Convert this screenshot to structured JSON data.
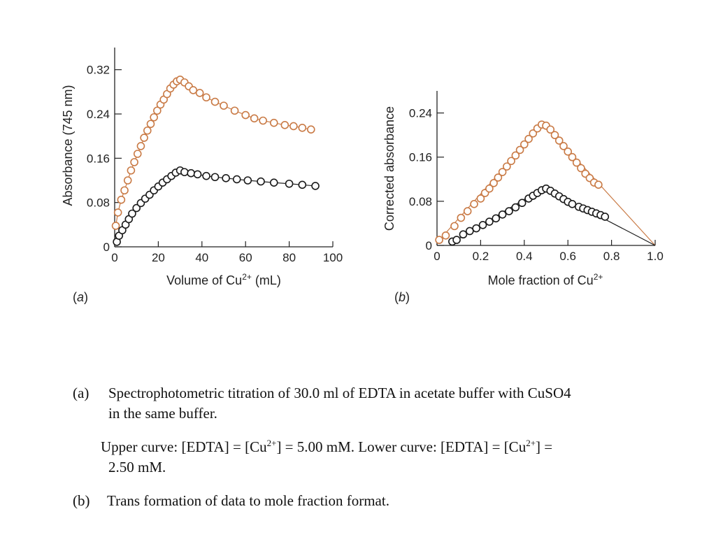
{
  "chart_data": [
    {
      "type": "scatter",
      "panel_label": "(a)",
      "xlabel": "Volume of Cu",
      "xlabel_sup": "2+",
      "xlabel_suffix": " (mL)",
      "ylabel": "Absorbance (745 nm)",
      "xlim": [
        0,
        100
      ],
      "ylim": [
        0,
        0.36
      ],
      "xticks": [
        0,
        20,
        40,
        60,
        80,
        100
      ],
      "xtick_labels": [
        "0",
        "20",
        "40",
        "60",
        "80",
        "100"
      ],
      "yticks": [
        0,
        0.08,
        0.16,
        0.24,
        0.32
      ],
      "ytick_labels": [
        "0",
        "0.08",
        "0.16",
        "0.24",
        "0.32"
      ],
      "grid": false,
      "series": [
        {
          "color": "#c97a45",
          "marker": "open-circle",
          "x": [
            0.5,
            1.5,
            3,
            4.5,
            6,
            7.5,
            9,
            10.5,
            12,
            13.5,
            15,
            16.5,
            18,
            19.5,
            21,
            22.5,
            24,
            25.5,
            27,
            28.5,
            30,
            32,
            34,
            36,
            39,
            42,
            46,
            50,
            55,
            60,
            64,
            68,
            73,
            78,
            82,
            86,
            90
          ],
          "y": [
            0.038,
            0.062,
            0.085,
            0.102,
            0.12,
            0.138,
            0.153,
            0.168,
            0.182,
            0.197,
            0.21,
            0.222,
            0.234,
            0.246,
            0.257,
            0.266,
            0.276,
            0.286,
            0.293,
            0.299,
            0.302,
            0.297,
            0.29,
            0.283,
            0.278,
            0.27,
            0.262,
            0.255,
            0.246,
            0.238,
            0.232,
            0.228,
            0.224,
            0.22,
            0.218,
            0.215,
            0.212
          ]
        },
        {
          "color": "#1a1a1a",
          "marker": "open-circle",
          "x": [
            1,
            2,
            3.5,
            5,
            6.5,
            8,
            10,
            12,
            14,
            16,
            18,
            20,
            22,
            24,
            26,
            28,
            30,
            32,
            35,
            38,
            42,
            46,
            51,
            56,
            61,
            67,
            73,
            80,
            86,
            92
          ],
          "y": [
            0.009,
            0.02,
            0.03,
            0.04,
            0.05,
            0.06,
            0.07,
            0.079,
            0.087,
            0.094,
            0.102,
            0.109,
            0.116,
            0.122,
            0.128,
            0.134,
            0.138,
            0.135,
            0.133,
            0.131,
            0.128,
            0.126,
            0.124,
            0.122,
            0.12,
            0.118,
            0.116,
            0.114,
            0.112,
            0.11
          ]
        }
      ]
    },
    {
      "type": "scatter",
      "panel_label": "(b)",
      "xlabel": "Mole fraction of Cu",
      "xlabel_sup": "2+",
      "xlabel_suffix": "",
      "ylabel": "Corrected absorbance",
      "xlim": [
        0,
        1.0
      ],
      "ylim": [
        0,
        0.28
      ],
      "xticks": [
        0,
        0.2,
        0.4,
        0.6,
        0.8,
        1.0
      ],
      "xtick_labels": [
        "0",
        "0.2",
        "0.4",
        "0.6",
        "0.8",
        "1.0"
      ],
      "yticks": [
        0,
        0.08,
        0.16,
        0.24
      ],
      "ytick_labels": [
        "0",
        "0.08",
        "0.16",
        "0.24"
      ],
      "grid": false,
      "series": [
        {
          "color": "#c97a45",
          "marker": "open-circle",
          "x": [
            0.01,
            0.04,
            0.08,
            0.11,
            0.14,
            0.17,
            0.2,
            0.22,
            0.24,
            0.26,
            0.28,
            0.3,
            0.32,
            0.34,
            0.36,
            0.38,
            0.4,
            0.42,
            0.44,
            0.46,
            0.48,
            0.5,
            0.52,
            0.54,
            0.56,
            0.58,
            0.6,
            0.62,
            0.64,
            0.66,
            0.68,
            0.7,
            0.72,
            0.74
          ],
          "y": [
            0.01,
            0.018,
            0.035,
            0.05,
            0.062,
            0.075,
            0.085,
            0.095,
            0.103,
            0.113,
            0.123,
            0.133,
            0.143,
            0.153,
            0.163,
            0.173,
            0.183,
            0.193,
            0.203,
            0.212,
            0.219,
            0.217,
            0.21,
            0.2,
            0.19,
            0.18,
            0.17,
            0.16,
            0.15,
            0.14,
            0.13,
            0.122,
            0.114,
            0.11
          ]
        },
        {
          "color": "#1a1a1a",
          "marker": "open-circle",
          "x": [
            0.07,
            0.09,
            0.12,
            0.15,
            0.18,
            0.21,
            0.24,
            0.27,
            0.3,
            0.33,
            0.36,
            0.39,
            0.42,
            0.44,
            0.46,
            0.48,
            0.5,
            0.52,
            0.54,
            0.56,
            0.58,
            0.6,
            0.62,
            0.65,
            0.67,
            0.69,
            0.71,
            0.73,
            0.75,
            0.77
          ],
          "y": [
            0.007,
            0.01,
            0.02,
            0.026,
            0.031,
            0.037,
            0.043,
            0.049,
            0.056,
            0.062,
            0.069,
            0.077,
            0.085,
            0.09,
            0.095,
            0.1,
            0.103,
            0.099,
            0.094,
            0.089,
            0.084,
            0.079,
            0.075,
            0.07,
            0.067,
            0.064,
            0.061,
            0.058,
            0.055,
            0.052
          ]
        }
      ],
      "lines": [
        {
          "color": "#c97a45",
          "x": [
            0,
            0.49,
            1.0
          ],
          "y": [
            0.005,
            0.221,
            0.0
          ]
        },
        {
          "color": "#1a1a1a",
          "x": [
            0.07,
            0.49,
            1.0
          ],
          "y": [
            0.005,
            0.105,
            0.0
          ]
        }
      ]
    }
  ],
  "caption": {
    "a_marker": "(a)",
    "a_line1": "Spectrophotometric titration of 30.0 ml of EDTA in acetate buffer with CuSO4",
    "a_line2": "in the same buffer.",
    "upper_pre": "Upper curve: [EDTA] = [Cu",
    "upper_sup": "2+",
    "upper_post": "] = 5.00 mM. Lower curve: [EDTA] = [Cu",
    "upper_sup2": "2+",
    "upper_post2": "] =",
    "upper_line2": "2.50 mM.",
    "b_marker": "(b)",
    "b_text": "Trans formation of data to mole fraction format."
  }
}
